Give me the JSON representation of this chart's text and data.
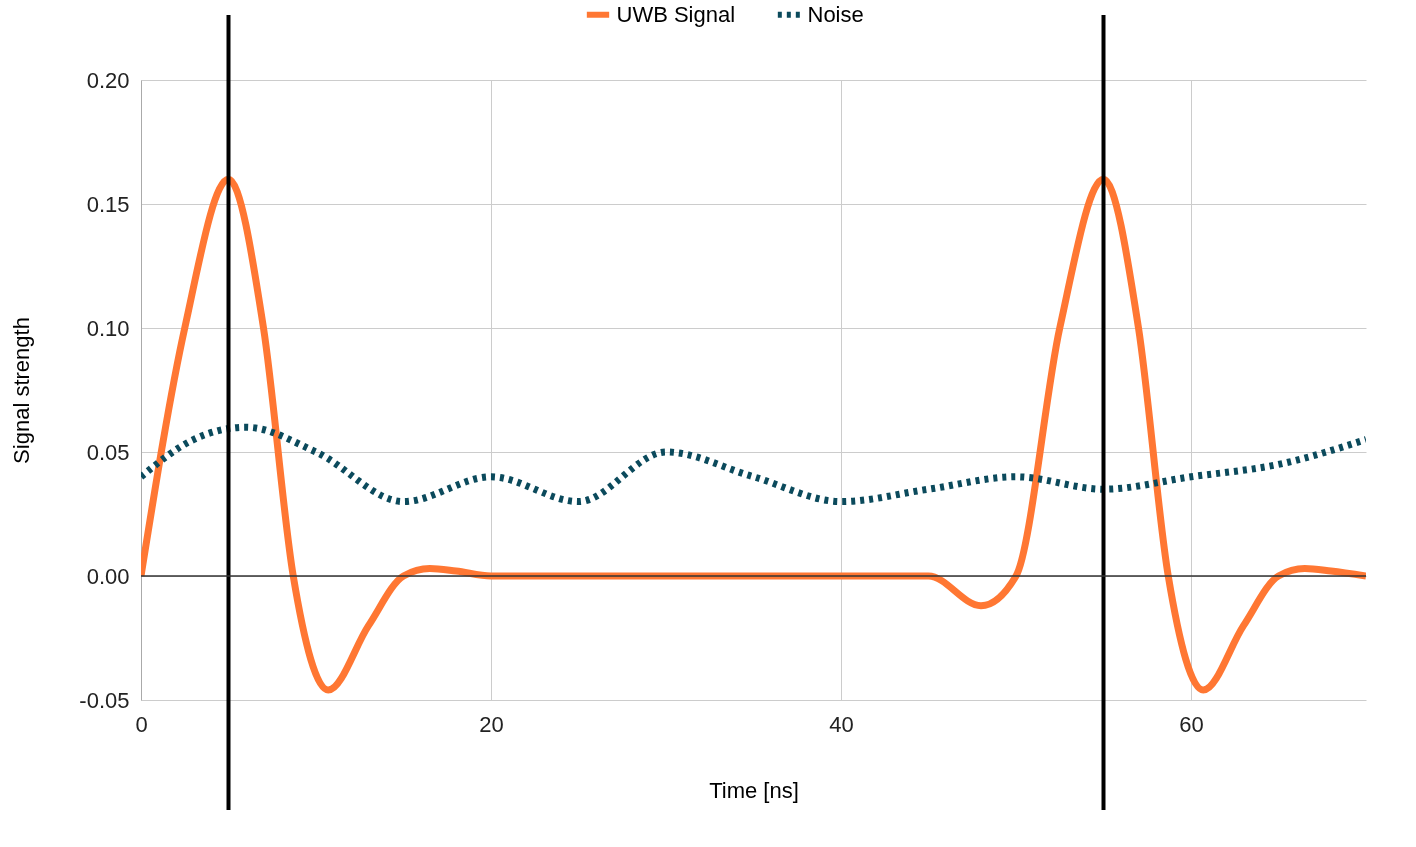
{
  "chart_data": {
    "type": "line",
    "xlabel": "Time [ns]",
    "ylabel": "Signal strength",
    "xlim": [
      0,
      70
    ],
    "xticks": [
      0,
      20,
      40,
      60
    ],
    "ylim": [
      -0.05,
      0.2
    ],
    "yticks": [
      {
        "value": -0.05,
        "label": "-0.05"
      },
      {
        "value": 0,
        "label": "0.00"
      },
      {
        "value": 0.05,
        "label": "0.05"
      },
      {
        "value": 0.1,
        "label": "0.10"
      },
      {
        "value": 0.15,
        "label": "0.15"
      },
      {
        "value": 0.2,
        "label": "0.20"
      }
    ],
    "grid": true,
    "legend": "top",
    "series": [
      {
        "name": "UWB Signal",
        "color": "#ff7733",
        "line_style": "solid",
        "x": [
          0,
          2.5,
          5,
          7,
          8.7,
          10.7,
          13,
          15,
          16.5,
          18,
          20,
          30,
          45,
          48,
          50,
          52.5,
          55,
          57,
          58.7,
          60.7,
          63,
          65,
          66.5,
          68,
          70
        ],
        "values": [
          0,
          0.1,
          0.16,
          0.1,
          0,
          -0.046,
          -0.02,
          0.0,
          0.003,
          0.002,
          0,
          0,
          0,
          -0.012,
          0,
          0.1,
          0.16,
          0.1,
          0,
          -0.046,
          -0.02,
          0.0,
          0.003,
          0.002,
          0
        ]
      },
      {
        "name": "Noise",
        "color": "#0b4a5c",
        "line_style": "dotted",
        "x": [
          0,
          3,
          6,
          10,
          15,
          20,
          25,
          30,
          35,
          40,
          45,
          50,
          55,
          60,
          65,
          70
        ],
        "values": [
          0.04,
          0.055,
          0.06,
          0.05,
          0.03,
          0.04,
          0.03,
          0.05,
          0.04,
          0.03,
          0.035,
          0.04,
          0.035,
          0.04,
          0.045,
          0.055
        ]
      }
    ],
    "ref_lines": [
      {
        "axis": "x",
        "value": 5,
        "color": "#000000"
      },
      {
        "axis": "x",
        "value": 55,
        "color": "#000000"
      },
      {
        "axis": "y",
        "value": 0,
        "color": "#333333"
      }
    ]
  }
}
